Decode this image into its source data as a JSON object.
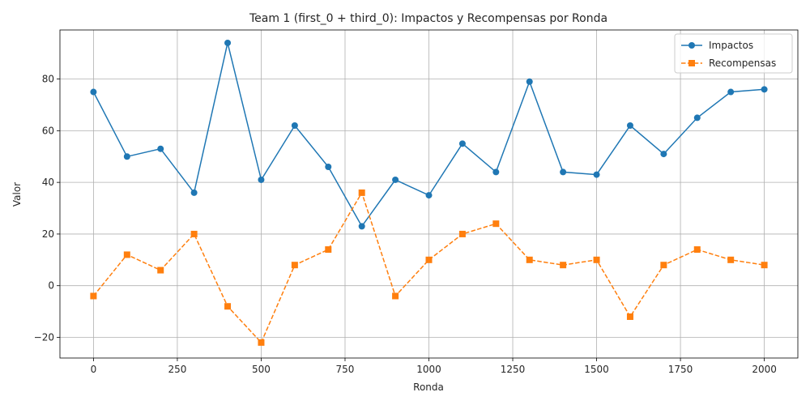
{
  "chart_data": {
    "type": "line",
    "title": "Team 1 (first_0 + third_0): Impactos y Recompensas por Ronda",
    "xlabel": "Ronda",
    "ylabel": "Valor",
    "x": [
      0,
      100,
      200,
      300,
      400,
      500,
      600,
      700,
      800,
      900,
      1000,
      1100,
      1200,
      1300,
      1400,
      1500,
      1600,
      1700,
      1800,
      1900,
      2000
    ],
    "xlim": [
      -100,
      2100
    ],
    "ylim": [
      -28,
      99
    ],
    "xticks": [
      0,
      250,
      500,
      750,
      1000,
      1250,
      1500,
      1750,
      2000
    ],
    "yticks": [
      -20,
      0,
      20,
      40,
      60,
      80
    ],
    "grid": true,
    "legend_position": "top-right",
    "series": [
      {
        "name": "Impactos",
        "color": "#1f77b4",
        "marker": "circle",
        "linestyle": "solid",
        "values": [
          75,
          50,
          53,
          36,
          94,
          41,
          62,
          46,
          23,
          41,
          35,
          55,
          44,
          79,
          44,
          43,
          62,
          51,
          65,
          75,
          76
        ]
      },
      {
        "name": "Recompensas",
        "color": "#ff7f0e",
        "marker": "square",
        "linestyle": "dashed",
        "values": [
          -4,
          12,
          6,
          20,
          -8,
          -22,
          8,
          14,
          36,
          -4,
          10,
          20,
          24,
          10,
          8,
          10,
          -12,
          8,
          14,
          10,
          8
        ]
      }
    ]
  }
}
